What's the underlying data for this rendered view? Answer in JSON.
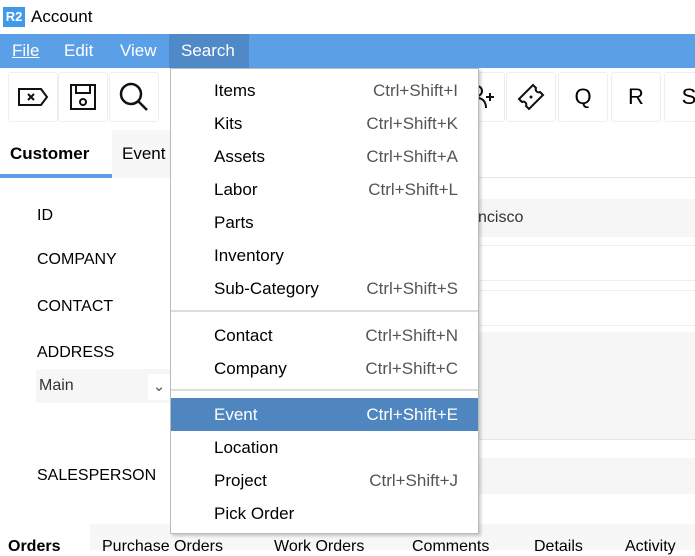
{
  "window": {
    "logo": "R2",
    "title": "Account"
  },
  "menubar": [
    "File",
    "Edit",
    "View",
    "Search"
  ],
  "toolbar": {
    "icons": [
      "clear-tag-icon",
      "save-icon",
      "search-icon",
      "add-user-icon",
      "ticket-icon"
    ],
    "letters": [
      "Q",
      "R",
      "S"
    ]
  },
  "tabs": [
    "Customer",
    "Event"
  ],
  "form": {
    "labels": {
      "id": "ID",
      "company": "COMPANY",
      "contact": "CONTACT",
      "address": "ADDRESS",
      "salesperson": "SALESPERSON"
    },
    "address_select": "Main",
    "id_value_visible": "ncisco"
  },
  "search_menu": {
    "items": [
      {
        "label": "Items",
        "shortcut": "Ctrl+Shift+I"
      },
      {
        "label": "Kits",
        "shortcut": "Ctrl+Shift+K"
      },
      {
        "label": "Assets",
        "shortcut": "Ctrl+Shift+A"
      },
      {
        "label": "Labor",
        "shortcut": "Ctrl+Shift+L"
      },
      {
        "label": "Parts",
        "shortcut": ""
      },
      {
        "label": "Inventory",
        "shortcut": ""
      },
      {
        "label": "Sub-Category",
        "shortcut": "Ctrl+Shift+S"
      },
      {
        "label": "Contact",
        "shortcut": "Ctrl+Shift+N"
      },
      {
        "label": "Company",
        "shortcut": "Ctrl+Shift+C"
      },
      {
        "label": "Event",
        "shortcut": "Ctrl+Shift+E"
      },
      {
        "label": "Location",
        "shortcut": ""
      },
      {
        "label": "Project",
        "shortcut": "Ctrl+Shift+J"
      },
      {
        "label": "Pick Order",
        "shortcut": ""
      }
    ],
    "highlighted": "Event"
  },
  "bottom_tabs": [
    "Orders",
    "Purchase Orders",
    "Work Orders",
    "Comments",
    "Details",
    "Activity"
  ],
  "colors": {
    "menubar": "#5b9fe6",
    "highlight": "#4f86c0",
    "logo": "#3d9be9"
  }
}
